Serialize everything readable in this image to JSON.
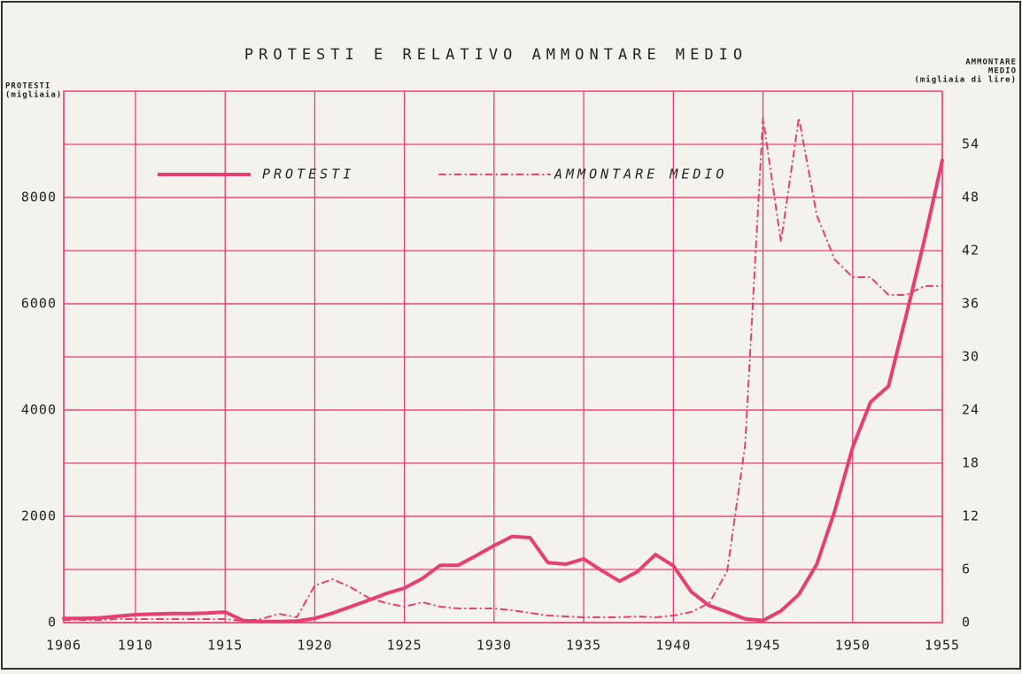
{
  "chart_data": {
    "type": "line",
    "title": "PROTESTI E RELATIVO AMMONTARE MEDIO",
    "y_label": [
      "PROTESTI",
      "(migliaia)"
    ],
    "y2_label": [
      "AMMONTARE",
      "MEDIO",
      "(migliaia di lire)"
    ],
    "x": [
      1906,
      1907,
      1908,
      1909,
      1910,
      1911,
      1912,
      1913,
      1914,
      1915,
      1916,
      1917,
      1918,
      1919,
      1920,
      1921,
      1922,
      1923,
      1924,
      1925,
      1926,
      1927,
      1928,
      1929,
      1930,
      1931,
      1932,
      1933,
      1934,
      1935,
      1936,
      1937,
      1938,
      1939,
      1940,
      1941,
      1942,
      1943,
      1944,
      1945,
      1946,
      1947,
      1948,
      1949,
      1950,
      1951,
      1952,
      1953,
      1954,
      1955
    ],
    "xlim": [
      1906,
      1955
    ],
    "xticks": [
      1906,
      1910,
      1915,
      1920,
      1925,
      1930,
      1935,
      1940,
      1945,
      1950,
      1955
    ],
    "ylim": [
      0,
      10000
    ],
    "yticks": [
      0,
      2000,
      4000,
      6000,
      8000
    ],
    "y2lim": [
      0,
      60
    ],
    "y2ticks": [
      0,
      6,
      12,
      18,
      24,
      30,
      36,
      42,
      48,
      54
    ],
    "grid": true,
    "legend": "top-left",
    "series": [
      {
        "name": "PROTESTI",
        "color": "#e8406e",
        "style": "solid",
        "values": [
          80,
          80,
          90,
          120,
          150,
          160,
          170,
          170,
          180,
          200,
          40,
          20,
          20,
          30,
          80,
          180,
          300,
          420,
          550,
          650,
          830,
          1080,
          1080,
          1260,
          1450,
          1620,
          1600,
          1130,
          1100,
          1200,
          980,
          780,
          960,
          1280,
          1070,
          580,
          320,
          200,
          70,
          40,
          220,
          530,
          1100,
          2100,
          3300,
          4150,
          4450,
          5800,
          7200,
          8700
        ]
      },
      {
        "name": "AMMONTARE MEDIO",
        "color": "#e8406e",
        "style": "dashdot",
        "axis": "y2",
        "values": [
          0.3,
          0.3,
          0.3,
          0.4,
          0.4,
          0.4,
          0.4,
          0.4,
          0.4,
          0.4,
          0.2,
          0.4,
          1,
          0.6,
          4.2,
          4.9,
          4,
          2.8,
          2.2,
          1.8,
          2.3,
          1.8,
          1.6,
          1.6,
          1.6,
          1.4,
          1.1,
          0.8,
          0.7,
          0.6,
          0.6,
          0.6,
          0.7,
          0.6,
          0.8,
          1.2,
          2.2,
          5.8,
          20,
          57,
          43,
          57,
          46,
          41,
          39,
          39,
          37,
          37,
          38,
          38
        ]
      }
    ]
  }
}
